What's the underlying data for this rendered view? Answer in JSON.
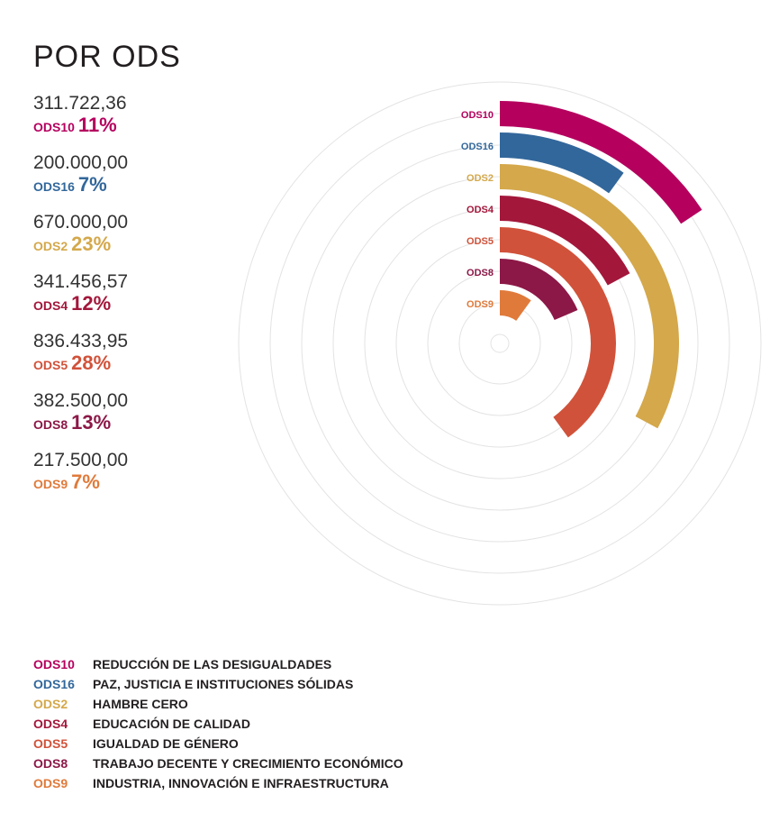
{
  "title": "POR ODS",
  "chart_data": {
    "type": "radial-bar",
    "series": [
      {
        "code": "ODS10",
        "amount": "311.722,36",
        "pct": 11,
        "pct_label": "11%",
        "color": "#b5005e",
        "name": "REDUCCIÓN DE LAS DESIGUALDADES"
      },
      {
        "code": "ODS16",
        "amount": "200.000,00",
        "pct": 7,
        "pct_label": "7%",
        "color": "#32679b",
        "name": "PAZ, JUSTICIA E INSTITUCIONES SÓLIDAS"
      },
      {
        "code": "ODS2",
        "amount": "670.000,00",
        "pct": 23,
        "pct_label": "23%",
        "color": "#d4a84b",
        "name": "HAMBRE CERO"
      },
      {
        "code": "ODS4",
        "amount": "341.456,57",
        "pct": 12,
        "pct_label": "12%",
        "color": "#a3173b",
        "name": "EDUCACIÓN DE CALIDAD"
      },
      {
        "code": "ODS5",
        "amount": "836.433,95",
        "pct": 28,
        "pct_label": "28%",
        "color": "#d1523a",
        "name": "IGUALDAD DE GÉNERO"
      },
      {
        "code": "ODS8",
        "amount": "382.500,00",
        "pct": 13,
        "pct_label": "13%",
        "color": "#8c1847",
        "name": "TRABAJO DECENTE Y CRECIMIENTO ECONÓMICO"
      },
      {
        "code": "ODS9",
        "amount": "217.500,00",
        "pct": 7,
        "pct_label": "7%",
        "color": "#e07a3b",
        "name": "INDUSTRIA, INNOVACIÓN E INFRAESTRUCTURA"
      }
    ],
    "scale_max_pct": 70,
    "grid": true
  }
}
